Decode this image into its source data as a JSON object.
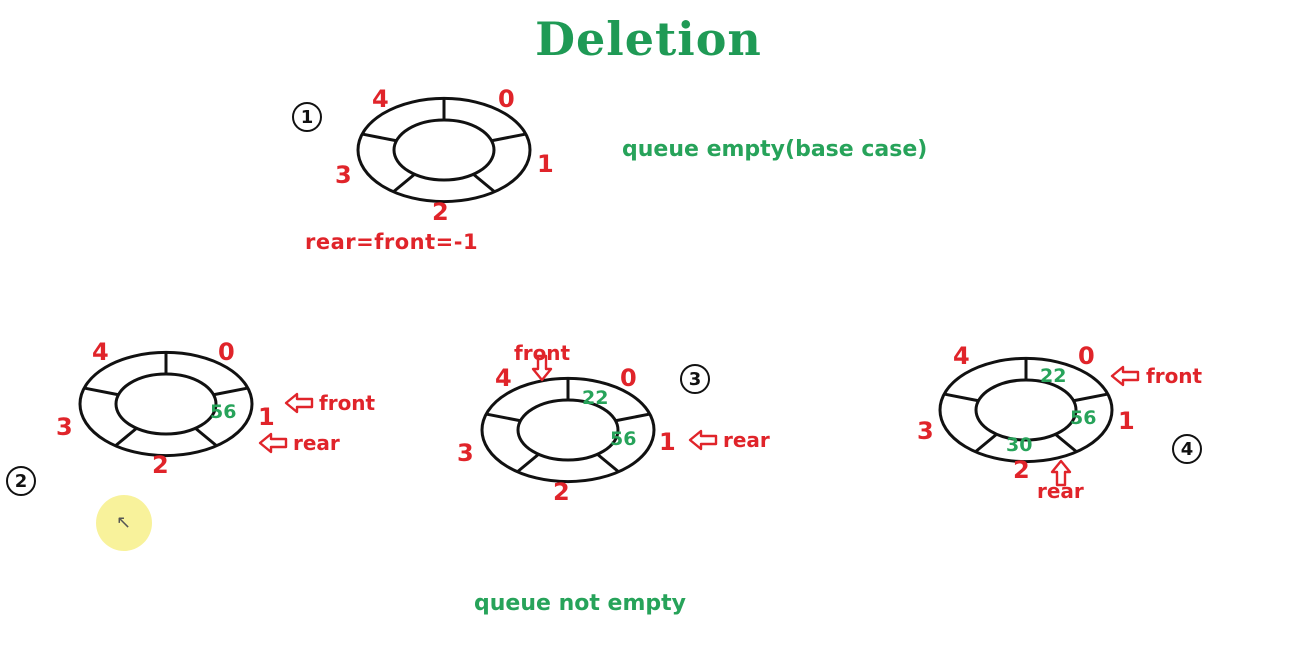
{
  "title": "Deletion",
  "colors": {
    "title": "#1f9a55",
    "caption": "#27a35a",
    "red": "#e0242a",
    "green": "#27a35a",
    "ink": "#111111"
  },
  "captions": {
    "empty": "queue empty(base case)",
    "not_empty": "queue not empty"
  },
  "cases": [
    {
      "badge": "1",
      "indices": [
        "0",
        "1",
        "2",
        "3",
        "4"
      ],
      "slots": [
        "",
        "",
        "",
        "",
        ""
      ],
      "condition": "rear=front=-1",
      "pointers": []
    },
    {
      "badge": "2",
      "indices": [
        "0",
        "1",
        "2",
        "3",
        "4"
      ],
      "slots": [
        "",
        "56",
        "",
        "",
        ""
      ],
      "pointers": [
        {
          "label": "front",
          "slot": "1"
        },
        {
          "label": "rear",
          "slot": "1"
        }
      ]
    },
    {
      "badge": "3",
      "indices": [
        "0",
        "1",
        "2",
        "3",
        "4"
      ],
      "slots": [
        "22",
        "56",
        "",
        "",
        ""
      ],
      "pointers": [
        {
          "label": "front",
          "slot": "0"
        },
        {
          "label": "rear",
          "slot": "1"
        }
      ]
    },
    {
      "badge": "4",
      "indices": [
        "0",
        "1",
        "2",
        "3",
        "4"
      ],
      "slots": [
        "22",
        "56",
        "30",
        "",
        ""
      ],
      "pointers": [
        {
          "label": "front",
          "slot": "0"
        },
        {
          "label": "rear",
          "slot": "2"
        }
      ]
    }
  ]
}
